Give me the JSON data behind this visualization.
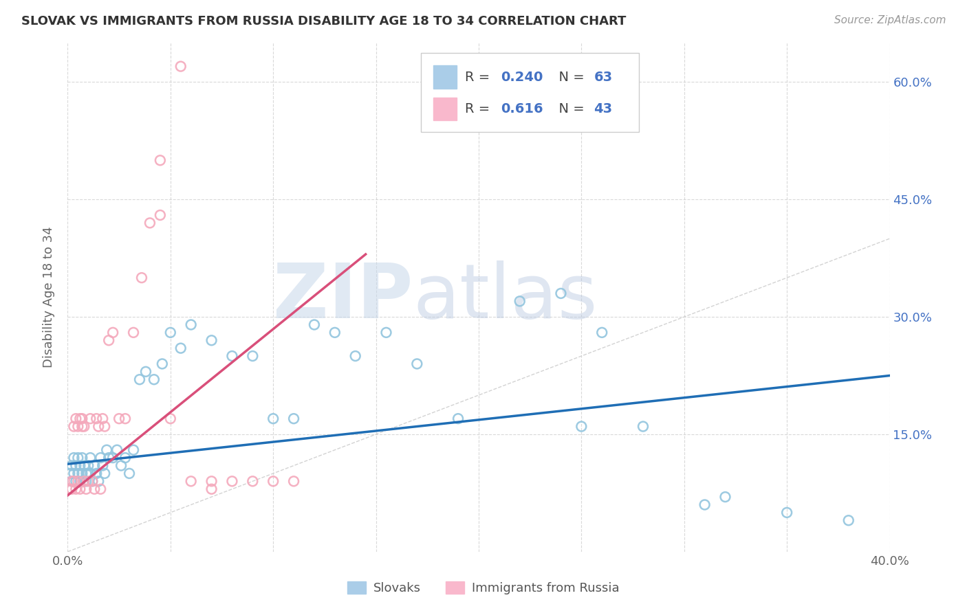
{
  "title": "SLOVAK VS IMMIGRANTS FROM RUSSIA DISABILITY AGE 18 TO 34 CORRELATION CHART",
  "source": "Source: ZipAtlas.com",
  "ylabel": "Disability Age 18 to 34",
  "xlim": [
    0.0,
    0.4
  ],
  "ylim": [
    0.0,
    0.65
  ],
  "yticks_right": [
    0.15,
    0.3,
    0.45,
    0.6
  ],
  "ytick_right_labels": [
    "15.0%",
    "30.0%",
    "45.0%",
    "60.0%"
  ],
  "legend_labels": [
    "Slovaks",
    "Immigrants from Russia"
  ],
  "blue_color": "#92c5de",
  "pink_color": "#f4a9bc",
  "blue_line_color": "#1f6eb5",
  "pink_line_color": "#d94f7a",
  "R_blue": 0.24,
  "N_blue": 63,
  "R_pink": 0.616,
  "N_pink": 43,
  "blue_x": [
    0.001,
    0.002,
    0.002,
    0.003,
    0.003,
    0.004,
    0.004,
    0.005,
    0.005,
    0.006,
    0.006,
    0.007,
    0.007,
    0.008,
    0.008,
    0.009,
    0.009,
    0.01,
    0.01,
    0.011,
    0.011,
    0.012,
    0.013,
    0.014,
    0.015,
    0.016,
    0.017,
    0.018,
    0.019,
    0.02,
    0.022,
    0.024,
    0.026,
    0.028,
    0.03,
    0.032,
    0.035,
    0.038,
    0.042,
    0.046,
    0.05,
    0.055,
    0.06,
    0.07,
    0.08,
    0.09,
    0.1,
    0.11,
    0.12,
    0.13,
    0.14,
    0.155,
    0.17,
    0.19,
    0.22,
    0.25,
    0.26,
    0.28,
    0.31,
    0.35,
    0.38,
    0.32,
    0.24
  ],
  "blue_y": [
    0.1,
    0.11,
    0.09,
    0.1,
    0.12,
    0.09,
    0.11,
    0.1,
    0.12,
    0.11,
    0.09,
    0.1,
    0.12,
    0.09,
    0.11,
    0.1,
    0.09,
    0.11,
    0.1,
    0.12,
    0.1,
    0.09,
    0.11,
    0.1,
    0.09,
    0.12,
    0.11,
    0.1,
    0.13,
    0.12,
    0.12,
    0.13,
    0.11,
    0.12,
    0.1,
    0.13,
    0.22,
    0.23,
    0.22,
    0.24,
    0.28,
    0.26,
    0.29,
    0.27,
    0.25,
    0.25,
    0.17,
    0.17,
    0.29,
    0.28,
    0.25,
    0.28,
    0.24,
    0.17,
    0.32,
    0.16,
    0.28,
    0.16,
    0.06,
    0.05,
    0.04,
    0.07,
    0.33
  ],
  "pink_x": [
    0.001,
    0.002,
    0.002,
    0.003,
    0.003,
    0.004,
    0.004,
    0.005,
    0.005,
    0.006,
    0.006,
    0.007,
    0.007,
    0.008,
    0.008,
    0.009,
    0.01,
    0.011,
    0.012,
    0.013,
    0.014,
    0.015,
    0.016,
    0.017,
    0.018,
    0.02,
    0.022,
    0.025,
    0.028,
    0.032,
    0.036,
    0.04,
    0.045,
    0.05,
    0.06,
    0.07,
    0.08,
    0.09,
    0.1,
    0.11,
    0.07,
    0.055,
    0.045
  ],
  "pink_y": [
    0.08,
    0.09,
    0.08,
    0.09,
    0.16,
    0.08,
    0.17,
    0.16,
    0.09,
    0.17,
    0.08,
    0.17,
    0.16,
    0.09,
    0.16,
    0.08,
    0.09,
    0.17,
    0.09,
    0.08,
    0.17,
    0.16,
    0.08,
    0.17,
    0.16,
    0.27,
    0.28,
    0.17,
    0.17,
    0.28,
    0.35,
    0.42,
    0.43,
    0.17,
    0.09,
    0.09,
    0.09,
    0.09,
    0.09,
    0.09,
    0.08,
    0.62,
    0.5
  ],
  "blue_line_x": [
    0.0,
    0.4
  ],
  "blue_line_y": [
    0.112,
    0.225
  ],
  "pink_line_x": [
    0.0,
    0.145
  ],
  "pink_line_y": [
    0.072,
    0.38
  ],
  "watermark_zip": "ZIP",
  "watermark_atlas": "atlas",
  "background_color": "#ffffff",
  "grid_color": "#d0d0d0"
}
